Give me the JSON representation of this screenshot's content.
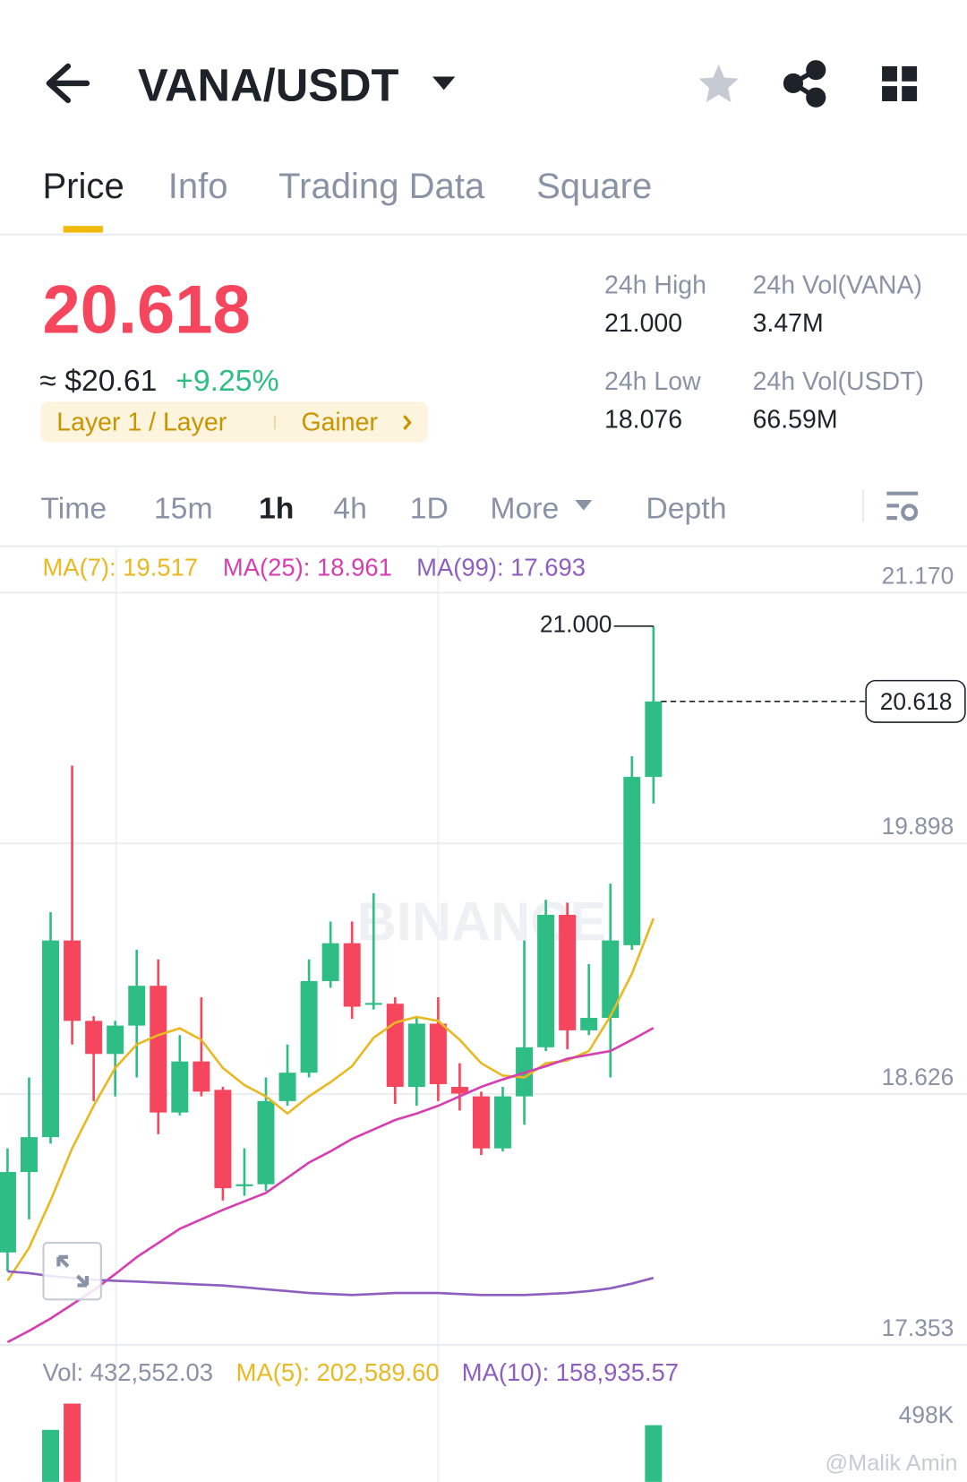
{
  "header": {
    "pair": "VANA/USDT"
  },
  "tabs": [
    "Price",
    "Info",
    "Trading Data",
    "Square"
  ],
  "price": {
    "last": "20.618",
    "usd": "≈ $20.61",
    "change": "+9.25%",
    "tags": [
      "Layer 1 / Layer",
      "Gainer"
    ]
  },
  "stats": [
    {
      "label": "24h High",
      "value": "21.000"
    },
    {
      "label": "24h Vol(VANA)",
      "value": "3.47M"
    },
    {
      "label": "24h Low",
      "value": "18.076"
    },
    {
      "label": "24h Vol(USDT)",
      "value": "66.59M"
    }
  ],
  "intervals": [
    "Time",
    "15m",
    "1h",
    "4h",
    "1D",
    "More",
    "Depth"
  ],
  "chart_data": {
    "type": "candlestick",
    "watermark": "BINANCE",
    "up_color": "#2ebd85",
    "down_color": "#f6465d",
    "ylim": [
      17.353,
      21.17
    ],
    "yticks": [
      {
        "value": 21.17,
        "label": "21.170"
      },
      19.898,
      18.626,
      17.353
    ],
    "grid": true,
    "open": [
      17.822,
      18.23,
      18.407,
      19.405,
      18.997,
      18.829,
      18.973,
      19.175,
      18.532,
      18.791,
      18.647,
      18.158,
      18.168,
      18.59,
      18.734,
      19.199,
      19.391,
      19.079,
      19.084,
      18.662,
      18.983,
      18.662,
      18.614,
      18.35,
      18.614,
      18.863,
      19.535,
      18.949,
      19.012,
      19.381,
      20.235
    ],
    "close": [
      18.23,
      18.407,
      19.405,
      18.997,
      18.829,
      18.973,
      19.175,
      18.532,
      18.791,
      18.638,
      18.148,
      18.168,
      18.59,
      18.734,
      19.199,
      19.391,
      19.069,
      19.088,
      18.662,
      18.983,
      18.676,
      18.628,
      18.35,
      18.614,
      18.863,
      19.535,
      18.949,
      19.012,
      19.405,
      20.235,
      20.618
    ],
    "high": [
      18.35,
      18.71,
      19.549,
      20.292,
      19.021,
      18.997,
      19.357,
      19.309,
      18.925,
      19.117,
      18.662,
      18.35,
      18.71,
      18.877,
      19.309,
      19.501,
      19.501,
      19.645,
      19.117,
      19.021,
      19.117,
      18.782,
      18.638,
      18.662,
      19.405,
      19.611,
      19.597,
      19.285,
      19.693,
      20.34,
      21.0
    ],
    "low": [
      17.726,
      17.99,
      18.374,
      18.877,
      18.59,
      18.614,
      18.71,
      18.422,
      18.518,
      18.614,
      18.086,
      18.11,
      18.134,
      18.566,
      18.71,
      19.165,
      19.007,
      19.055,
      18.575,
      18.566,
      18.59,
      18.542,
      18.316,
      18.335,
      18.47,
      18.844,
      18.853,
      18.925,
      18.71,
      19.357,
      20.1
    ],
    "series": [
      {
        "name": "MA(7): 19.517",
        "color": "#e8b923",
        "values": [
          17.678,
          17.846,
          18.086,
          18.35,
          18.566,
          18.758,
          18.877,
          18.925,
          18.959,
          18.901,
          18.758,
          18.671,
          18.614,
          18.527,
          18.614,
          18.686,
          18.767,
          18.911,
          18.988,
          19.017,
          18.997,
          18.901,
          18.782,
          18.719,
          18.71,
          18.782,
          18.796,
          18.844,
          19.021,
          19.237,
          19.517
        ]
      },
      {
        "name": "MA(25): 18.961",
        "color": "#d63fb0",
        "values": [
          17.367,
          17.424,
          17.487,
          17.558,
          17.63,
          17.712,
          17.798,
          17.87,
          17.942,
          17.99,
          18.038,
          18.081,
          18.124,
          18.201,
          18.278,
          18.335,
          18.398,
          18.446,
          18.494,
          18.527,
          18.566,
          18.614,
          18.662,
          18.7,
          18.734,
          18.767,
          18.805,
          18.825,
          18.844,
          18.901,
          18.961
        ]
      },
      {
        "name": "MA(99): 17.693",
        "color": "#8e5fc0",
        "values": [
          17.726,
          17.717,
          17.702,
          17.693,
          17.683,
          17.678,
          17.674,
          17.669,
          17.664,
          17.659,
          17.654,
          17.645,
          17.635,
          17.626,
          17.616,
          17.611,
          17.606,
          17.611,
          17.616,
          17.616,
          17.616,
          17.611,
          17.606,
          17.606,
          17.606,
          17.611,
          17.616,
          17.626,
          17.64,
          17.664,
          17.693
        ]
      }
    ],
    "high_marker": {
      "value": 21,
      "label": "21.000"
    },
    "last_price": 20.618
  },
  "volume": {
    "label": "Vol: 432,552.03",
    "ma5": "MA(5): 202,589.60",
    "ma10": "MA(10): 158,935.57",
    "ylim": [
      0,
      498000
    ],
    "yticks": [
      {
        "value": 498000,
        "label": "498K"
      }
    ],
    "values": [
      null,
      null,
      421000,
      486000,
      null,
      null,
      null,
      null,
      null,
      null,
      null,
      null,
      null,
      null,
      null,
      null,
      null,
      null,
      null,
      null,
      null,
      null,
      null,
      null,
      null,
      null,
      null,
      null,
      null,
      null,
      432552.03
    ]
  },
  "watermark_user": "@Malik Amin"
}
